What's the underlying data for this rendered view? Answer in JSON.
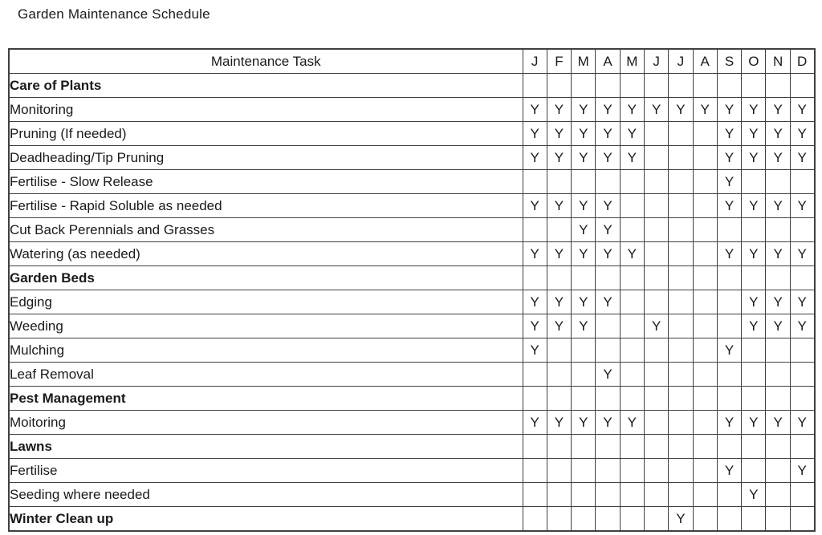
{
  "title": "Garden Maintenance Schedule",
  "table": {
    "task_header": "Maintenance Task",
    "months": [
      "J",
      "F",
      "M",
      "A",
      "M",
      "J",
      "J",
      "A",
      "S",
      "O",
      "N",
      "D"
    ],
    "rows": [
      {
        "label": "Care of Plants",
        "bold": true,
        "cells": [
          "",
          "",
          "",
          "",
          "",
          "",
          "",
          "",
          "",
          "",
          "",
          ""
        ]
      },
      {
        "label": "Monitoring",
        "bold": false,
        "cells": [
          "Y",
          "Y",
          "Y",
          "Y",
          "Y",
          "Y",
          "Y",
          "Y",
          "Y",
          "Y",
          "Y",
          "Y"
        ]
      },
      {
        "label": "Pruning (If needed)",
        "bold": false,
        "cells": [
          "Y",
          "Y",
          "Y",
          "Y",
          "Y",
          "",
          "",
          "",
          "Y",
          "Y",
          "Y",
          "Y"
        ]
      },
      {
        "label": "Deadheading/Tip Pruning",
        "bold": false,
        "cells": [
          "Y",
          "Y",
          "Y",
          "Y",
          "Y",
          "",
          "",
          "",
          "Y",
          "Y",
          "Y",
          "Y"
        ]
      },
      {
        "label": "Fertilise - Slow Release",
        "bold": false,
        "cells": [
          "",
          "",
          "",
          "",
          "",
          "",
          "",
          "",
          "Y",
          "",
          "",
          ""
        ]
      },
      {
        "label": "Fertilise - Rapid Soluble as needed",
        "bold": false,
        "cells": [
          "Y",
          "Y",
          "Y",
          "Y",
          "",
          "",
          "",
          "",
          "Y",
          "Y",
          "Y",
          "Y"
        ]
      },
      {
        "label": "Cut Back Perennials and Grasses",
        "bold": false,
        "cells": [
          "",
          "",
          "Y",
          "Y",
          "",
          "",
          "",
          "",
          "",
          "",
          "",
          ""
        ]
      },
      {
        "label": "Watering (as needed)",
        "bold": false,
        "cells": [
          "Y",
          "Y",
          "Y",
          "Y",
          "Y",
          "",
          "",
          "",
          "Y",
          "Y",
          "Y",
          "Y"
        ]
      },
      {
        "label": "Garden Beds",
        "bold": true,
        "cells": [
          "",
          "",
          "",
          "",
          "",
          "",
          "",
          "",
          "",
          "",
          "",
          ""
        ]
      },
      {
        "label": "Edging",
        "bold": false,
        "cells": [
          "Y",
          "Y",
          "Y",
          "Y",
          "",
          "",
          "",
          "",
          "",
          "Y",
          "Y",
          "Y"
        ]
      },
      {
        "label": "Weeding",
        "bold": false,
        "cells": [
          "Y",
          "Y",
          "Y",
          "",
          "",
          "Y",
          "",
          "",
          "",
          "Y",
          "Y",
          "Y"
        ]
      },
      {
        "label": "Mulching",
        "bold": false,
        "cells": [
          "Y",
          "",
          "",
          "",
          "",
          "",
          "",
          "",
          "Y",
          "",
          "",
          ""
        ]
      },
      {
        "label": "Leaf Removal",
        "bold": false,
        "cells": [
          "",
          "",
          "",
          "Y",
          "",
          "",
          "",
          "",
          "",
          "",
          "",
          ""
        ]
      },
      {
        "label": "Pest Management",
        "bold": true,
        "cells": [
          "",
          "",
          "",
          "",
          "",
          "",
          "",
          "",
          "",
          "",
          "",
          ""
        ]
      },
      {
        "label": "Moitoring",
        "bold": false,
        "cells": [
          "Y",
          "Y",
          "Y",
          "Y",
          "Y",
          "",
          "",
          "",
          "Y",
          "Y",
          "Y",
          "Y"
        ]
      },
      {
        "label": "Lawns",
        "bold": true,
        "cells": [
          "",
          "",
          "",
          "",
          "",
          "",
          "",
          "",
          "",
          "",
          "",
          ""
        ]
      },
      {
        "label": "Fertilise",
        "bold": false,
        "cells": [
          "",
          "",
          "",
          "",
          "",
          "",
          "",
          "",
          "Y",
          "",
          "",
          "Y"
        ]
      },
      {
        "label": "Seeding where needed",
        "bold": false,
        "cells": [
          "",
          "",
          "",
          "",
          "",
          "",
          "",
          "",
          "",
          "Y",
          "",
          ""
        ]
      },
      {
        "label": "Winter Clean up",
        "bold": true,
        "cells": [
          "",
          "",
          "",
          "",
          "",
          "",
          "Y",
          "",
          "",
          "",
          "",
          ""
        ]
      }
    ]
  }
}
